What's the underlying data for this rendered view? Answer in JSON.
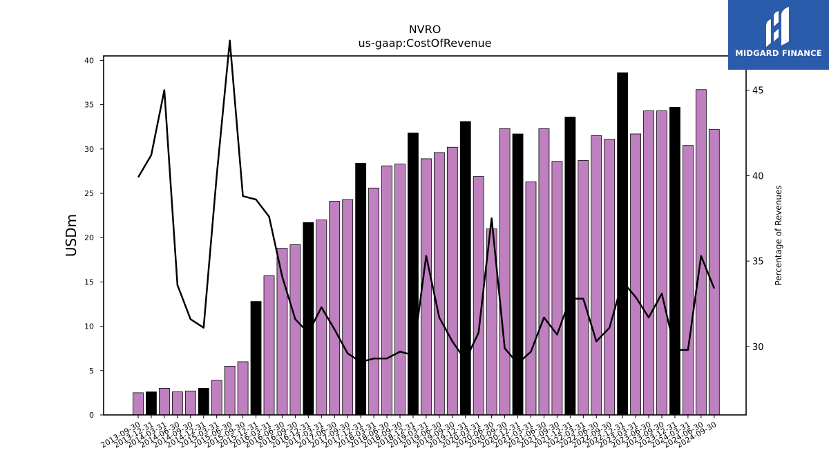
{
  "logo": {
    "text": "MIDGARD FINANCE",
    "icon": "midgard-finance-logo-icon",
    "background": "#2b5bab"
  },
  "chart_data": {
    "type": "bar",
    "title": "NVRO",
    "subtitle": "us-gaap:CostOfRevenue",
    "ylabel": "USDm",
    "y2label": "Percentage of Revenues",
    "ylim": [
      0,
      40.5
    ],
    "y2lim": [
      26,
      47
    ],
    "yticks": [
      0,
      5,
      10,
      15,
      20,
      25,
      30,
      35,
      40
    ],
    "y2ticks": [
      30,
      35,
      40,
      45
    ],
    "grid": false,
    "legend": "none",
    "colors": {
      "bar": "#bf80bf",
      "bar_highlight": "#000000",
      "line": "#000000"
    },
    "categories": [
      "2013-09-30",
      "2013-12-31",
      "2014-03-31",
      "2014-06-30",
      "2014-09-30",
      "2014-12-31",
      "2015-03-31",
      "2015-06-30",
      "2015-09-30",
      "2015-12-31",
      "2016-03-31",
      "2016-06-30",
      "2016-09-30",
      "2016-12-31",
      "2017-03-31",
      "2017-06-30",
      "2017-09-30",
      "2017-12-31",
      "2018-03-31",
      "2018-06-30",
      "2018-09-30",
      "2018-12-31",
      "2019-03-31",
      "2019-06-30",
      "2019-09-30",
      "2019-12-31",
      "2020-03-31",
      "2020-06-30",
      "2020-09-30",
      "2020-12-31",
      "2021-03-31",
      "2021-06-30",
      "2021-09-30",
      "2021-12-31",
      "2022-03-31",
      "2022-06-30",
      "2022-09-30",
      "2022-12-31",
      "2023-03-31",
      "2023-06-30",
      "2023-09-30",
      "2023-12-31",
      "2024-03-31",
      "2024-06-30",
      "2024-09-30"
    ],
    "highlight_categories": [
      "2013-12-31",
      "2014-12-31",
      "2015-12-31",
      "2016-12-31",
      "2017-12-31",
      "2018-12-31",
      "2019-12-31",
      "2020-12-31",
      "2021-12-31",
      "2022-12-31",
      "2023-12-31"
    ],
    "series": [
      {
        "type": "bar",
        "axis": "left",
        "values": [
          2.5,
          2.6,
          3.0,
          2.6,
          2.7,
          3.0,
          3.9,
          5.5,
          6.0,
          12.8,
          15.7,
          18.8,
          19.2,
          21.7,
          22.0,
          24.1,
          24.3,
          28.4,
          25.6,
          28.1,
          28.3,
          31.8,
          28.9,
          29.6,
          30.2,
          33.1,
          26.9,
          21.0,
          32.3,
          31.7,
          26.3,
          32.3,
          28.6,
          33.6,
          28.7,
          31.5,
          31.1,
          38.6,
          31.7,
          34.3,
          34.3,
          34.7,
          30.4,
          36.7,
          32.2
        ]
      },
      {
        "type": "line",
        "axis": "right",
        "values": [
          39.9,
          41.2,
          45.0,
          33.6,
          31.6,
          31.1,
          40.0,
          47.9,
          38.8,
          38.6,
          37.6,
          34.1,
          31.6,
          30.8,
          32.3,
          31.0,
          29.6,
          29.1,
          29.3,
          29.3,
          29.7,
          29.5,
          35.3,
          31.7,
          30.3,
          29.2,
          30.8,
          37.5,
          29.9,
          29.0,
          29.7,
          31.7,
          30.7,
          32.8,
          32.8,
          30.3,
          31.1,
          33.8,
          32.9,
          31.7,
          33.1,
          29.8,
          29.8,
          35.3,
          33.4
        ]
      }
    ]
  }
}
